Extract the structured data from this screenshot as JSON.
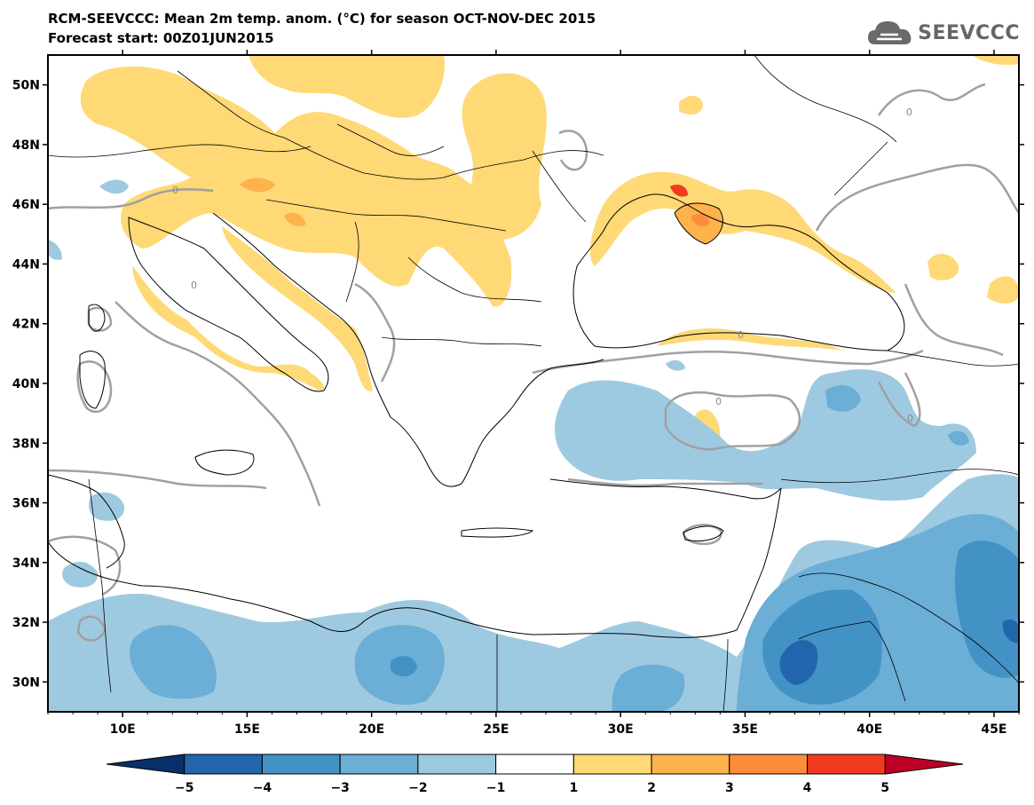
{
  "header": {
    "title": "RCM-SEEVCCC: Mean 2m temp. anom. (°C) for season OCT-NOV-DEC 2015",
    "subtitle": "Forecast start: 00Z01JUN2015"
  },
  "logo": {
    "text": "SEEVCCC",
    "icon": "cloud-icon"
  },
  "map": {
    "lat_labels": [
      "50N",
      "48N",
      "46N",
      "44N",
      "42N",
      "40N",
      "38N",
      "36N",
      "34N",
      "32N",
      "30N"
    ],
    "lat_values": [
      50,
      48,
      46,
      44,
      42,
      40,
      38,
      36,
      34,
      32,
      30
    ],
    "lon_labels": [
      "10E",
      "15E",
      "20E",
      "25E",
      "30E",
      "35E",
      "40E",
      "45E"
    ],
    "lon_values": [
      10,
      15,
      20,
      25,
      30,
      35,
      40,
      45
    ],
    "lon_range": [
      7,
      46
    ],
    "lat_range": [
      29,
      51
    ],
    "contour_label": "0"
  },
  "colorbar": {
    "tick_labels": [
      "−5",
      "−4",
      "−3",
      "−2",
      "−1",
      "1",
      "2",
      "3",
      "4",
      "5"
    ],
    "colors": [
      "#08306b",
      "#2166ac",
      "#4292c6",
      "#6baed6",
      "#9ecae1",
      "#ffffff",
      "#fed976",
      "#feb24c",
      "#fd8d3c",
      "#f03b20",
      "#bd0026"
    ]
  },
  "colors": {
    "pos1": "#fed976",
    "pos2": "#feb24c",
    "pos3": "#fd8d3c",
    "pos4": "#f03b20",
    "neg1": "#9ecae1",
    "neg2": "#6baed6",
    "neg3": "#4292c6",
    "neg4": "#2166ac",
    "contour": "#a0a0a0"
  }
}
